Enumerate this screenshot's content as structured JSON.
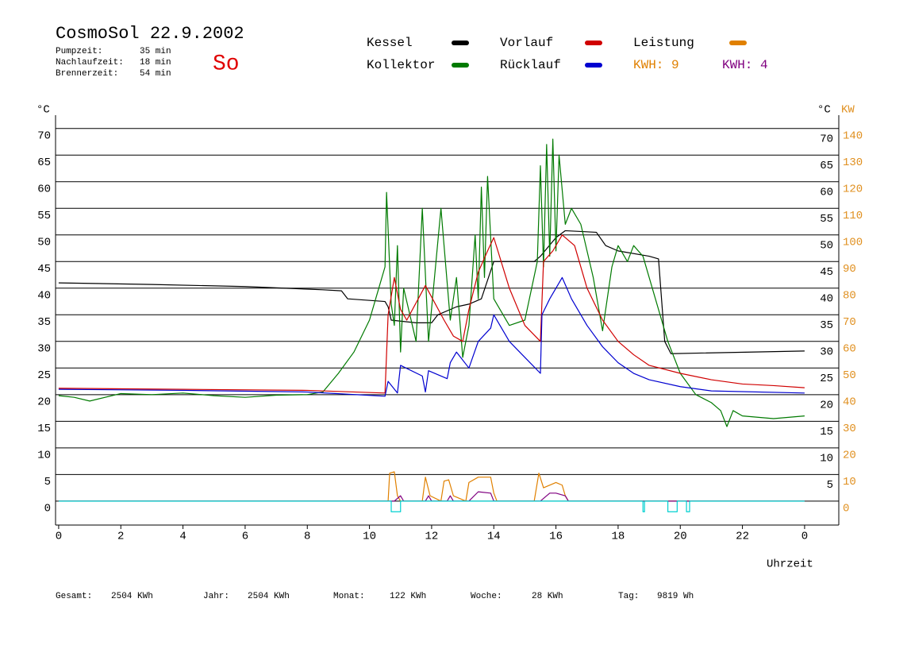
{
  "chart_data": {
    "type": "line",
    "title": "CosmoSol 22.9.2002",
    "day": "So",
    "info": [
      {
        "label": "Pumpzeit:",
        "value": "35 min"
      },
      {
        "label": "Nachlaufzeit:",
        "value": "18 min"
      },
      {
        "label": "Brennerzeit:",
        "value": "54 min"
      }
    ],
    "y_unit": "°C",
    "y2_unit": "KW",
    "x_label": "Uhrzeit",
    "xlim": [
      -0.1,
      25.1
    ],
    "xticks": [
      0,
      2,
      4,
      6,
      8,
      10,
      12,
      14,
      16,
      18,
      20,
      22,
      {
        "value": 24,
        "label": "0"
      }
    ],
    "ylim": [
      -4.5,
      72.5
    ],
    "yticks": [
      0,
      5,
      10,
      15,
      20,
      25,
      30,
      35,
      40,
      45,
      50,
      55,
      60,
      65,
      70
    ],
    "yticks_right": [
      5,
      10,
      15,
      20,
      25,
      30,
      35,
      40,
      45,
      50,
      55,
      60,
      65,
      70
    ],
    "y2lim": [
      -9,
      145
    ],
    "y2ticks": [
      0,
      10,
      20,
      30,
      40,
      50,
      60,
      70,
      80,
      90,
      100,
      110,
      120,
      130,
      140
    ],
    "grid": true,
    "series": [
      {
        "name": "Kessel",
        "color": "#000000",
        "x": [
          0,
          3,
          6,
          8.5,
          9.1,
          9.3,
          10.5,
          10.6,
          10.7,
          11.5,
          12.0,
          12.2,
          12.8,
          13.2,
          13.6,
          14.0,
          15.3,
          15.5,
          16.0,
          16.3,
          17.3,
          17.6,
          18.0,
          19.0,
          19.3,
          19.5,
          19.7,
          24
        ],
        "values": [
          41.0,
          40.7,
          40.3,
          39.7,
          39.5,
          38.0,
          37.5,
          36.5,
          34.0,
          33.5,
          33.5,
          35.0,
          36.5,
          37.0,
          38.0,
          45.0,
          45.0,
          46.0,
          49.5,
          50.8,
          50.5,
          48.0,
          47.0,
          46.0,
          45.5,
          30.0,
          27.7,
          28.2
        ]
      },
      {
        "name": "Kollektor",
        "color": "#007a00",
        "x": [
          0,
          0.5,
          1,
          2,
          3,
          4,
          5,
          6,
          7,
          8,
          8.5,
          9.0,
          9.5,
          10.0,
          10.3,
          10.5,
          10.55,
          10.7,
          10.8,
          10.9,
          11.0,
          11.1,
          11.5,
          11.7,
          11.9,
          12.3,
          12.6,
          12.8,
          13.0,
          13.2,
          13.4,
          13.5,
          13.6,
          13.7,
          13.8,
          14.0,
          14.5,
          15.0,
          15.4,
          15.5,
          15.6,
          15.7,
          15.8,
          15.9,
          16.0,
          16.1,
          16.3,
          16.5,
          16.8,
          17.2,
          17.5,
          17.8,
          18.0,
          18.3,
          18.5,
          18.8,
          19.2,
          19.6,
          20.0,
          20.5,
          21.0,
          21.3,
          21.5,
          21.7,
          22.0,
          23.0,
          24.0
        ],
        "values": [
          19.8,
          19.5,
          18.8,
          20.2,
          20.0,
          20.3,
          19.8,
          19.5,
          19.9,
          20.0,
          20.5,
          24.0,
          28.0,
          34.0,
          40.0,
          44.0,
          58.0,
          37.0,
          33.0,
          48.0,
          28.0,
          40.0,
          30.0,
          55.0,
          30.0,
          55.0,
          34.0,
          42.0,
          27.0,
          33.0,
          50.0,
          38.0,
          59.0,
          42.0,
          61.0,
          38.0,
          33.0,
          34.0,
          45.0,
          63.0,
          44.0,
          67.0,
          46.0,
          68.0,
          47.0,
          65.0,
          52.0,
          55.0,
          52.0,
          42.0,
          32.0,
          44.0,
          48.0,
          45.0,
          48.0,
          46.0,
          38.0,
          30.0,
          24.0,
          20.0,
          18.5,
          17.0,
          14.0,
          17.0,
          16.0,
          15.5,
          16.0
        ]
      },
      {
        "name": "Vorlauf",
        "color": "#d00000",
        "x": [
          0,
          4,
          8,
          10.5,
          10.6,
          10.8,
          11.0,
          11.2,
          11.8,
          12.4,
          12.7,
          13.0,
          13.2,
          13.5,
          13.8,
          14.0,
          14.5,
          15.0,
          15.5,
          15.6,
          15.9,
          16.2,
          16.6,
          17.0,
          17.5,
          18.0,
          18.5,
          19.0,
          20.0,
          21.0,
          22.0,
          23.0,
          24.0
        ],
        "values": [
          21.2,
          21.0,
          20.8,
          20.3,
          35.0,
          42.0,
          36.0,
          34.0,
          40.5,
          34.0,
          31.0,
          30.0,
          36.0,
          43.0,
          47.0,
          49.5,
          40.0,
          33.0,
          30.0,
          45.0,
          47.0,
          50.0,
          48.0,
          40.0,
          34.0,
          30.0,
          27.5,
          25.5,
          24.0,
          22.8,
          22.0,
          21.7,
          21.3
        ]
      },
      {
        "name": "Rücklauf",
        "color": "#0000d0",
        "x": [
          0,
          4,
          8,
          10.5,
          10.6,
          10.9,
          11.0,
          11.7,
          11.8,
          11.9,
          12.5,
          12.6,
          12.8,
          13.2,
          13.5,
          13.9,
          14.0,
          14.5,
          15.0,
          15.5,
          15.55,
          15.8,
          16.0,
          16.2,
          16.5,
          17.0,
          17.5,
          18.0,
          18.5,
          19.0,
          20.0,
          21.0,
          24.0
        ],
        "values": [
          21.0,
          20.8,
          20.5,
          19.7,
          22.5,
          20.3,
          25.5,
          23.5,
          20.5,
          24.5,
          23.0,
          26.0,
          28.0,
          25.0,
          30.0,
          32.5,
          35.0,
          30.0,
          27.0,
          24.0,
          35.0,
          38.0,
          40.0,
          42.0,
          38.0,
          33.0,
          29.0,
          26.0,
          24.0,
          22.8,
          21.5,
          20.7,
          20.3
        ]
      },
      {
        "name": "Leistung",
        "kwh_label": "KWH: 9",
        "color": "#e08000",
        "axis": "y2",
        "x": [
          0,
          10.6,
          10.65,
          10.8,
          10.9,
          11.0,
          11.7,
          11.8,
          11.95,
          12.3,
          12.4,
          12.55,
          12.7,
          13.1,
          13.2,
          13.5,
          13.9,
          14.0,
          14.1,
          15.3,
          15.45,
          15.6,
          16.0,
          16.2,
          16.3,
          16.4,
          24
        ],
        "values": [
          0,
          0,
          10.5,
          11.0,
          2.0,
          0,
          0,
          9.0,
          2.0,
          0,
          7.5,
          8.0,
          2.0,
          0,
          7.0,
          9.0,
          9.0,
          3.0,
          0,
          0,
          10.5,
          5.0,
          7.0,
          6.0,
          2.0,
          0,
          0
        ]
      },
      {
        "name": "KWH: 4",
        "color": "#800080",
        "axis": "y2",
        "x": [
          0,
          10.8,
          11.0,
          11.1,
          11.8,
          11.9,
          12.0,
          12.5,
          12.6,
          12.7,
          13.2,
          13.5,
          13.9,
          14.0,
          15.5,
          15.8,
          16.0,
          16.3,
          16.4,
          24
        ],
        "values": [
          0,
          0,
          2.0,
          0,
          0,
          2.0,
          0,
          0,
          2.0,
          0,
          0,
          3.5,
          3.0,
          0,
          0,
          3.0,
          3.0,
          2.0,
          0,
          0
        ]
      },
      {
        "color": "#00d0d0",
        "x": [
          0,
          10.7,
          10.7,
          11.0,
          11.0,
          18.8,
          18.8,
          18.85,
          18.85,
          19.6,
          19.6,
          19.9,
          19.9,
          20.2,
          20.2,
          20.3,
          20.3,
          24
        ],
        "values": [
          0,
          0,
          -2,
          -2,
          0,
          0,
          -2,
          -2,
          0,
          0,
          -2,
          -2,
          0,
          0,
          -2,
          -2,
          0,
          0
        ]
      }
    ],
    "totals": [
      {
        "label": "Gesamt:",
        "value": "2504 KWh"
      },
      {
        "label": "Jahr:",
        "value": "2504 KWh"
      },
      {
        "label": "Monat:",
        "value": "122 KWh"
      },
      {
        "label": "Woche:",
        "value": "28 KWh"
      },
      {
        "label": "Tag:",
        "value": "9819 Wh"
      }
    ]
  }
}
